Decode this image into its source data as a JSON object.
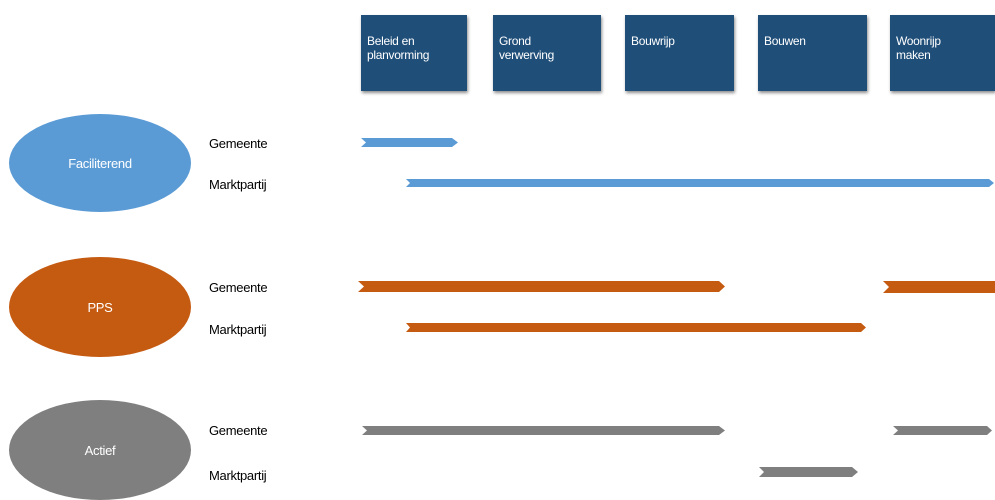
{
  "phases": [
    {
      "label": "Beleid en\nplanvorming"
    },
    {
      "label": "Grond\nverwerving"
    },
    {
      "label": "Bouwrijp"
    },
    {
      "label": "Bouwen"
    },
    {
      "label": "Woonrijp\nmaken"
    }
  ],
  "models": [
    {
      "label": "Faciliterend",
      "color": "#5b9bd5",
      "roles": [
        {
          "label": "Gemeente",
          "segments": [
            {
              "from": "Beleid en planvorming",
              "to": "Beleid en planvorming"
            }
          ]
        },
        {
          "label": "Marktpartij",
          "segments": [
            {
              "from": "Beleid en planvorming",
              "to": "Woonrijp maken"
            }
          ]
        }
      ]
    },
    {
      "label": "PPS",
      "color": "#c55a11",
      "roles": [
        {
          "label": "Gemeente",
          "segments": [
            {
              "from": "Beleid en planvorming",
              "to": "Bouwrijp"
            },
            {
              "from": "Woonrijp maken",
              "to": "Woonrijp maken"
            }
          ]
        },
        {
          "label": "Marktpartij",
          "segments": [
            {
              "from": "Beleid en planvorming",
              "to": "Bouwen"
            }
          ]
        }
      ]
    },
    {
      "label": "Actief",
      "color": "#7f7f7f",
      "roles": [
        {
          "label": "Gemeente",
          "segments": [
            {
              "from": "Beleid en planvorming",
              "to": "Bouwrijp"
            },
            {
              "from": "Woonrijp maken",
              "to": "Woonrijp maken"
            }
          ]
        },
        {
          "label": "Marktpartij",
          "segments": [
            {
              "from": "Bouwen",
              "to": "Bouwen"
            }
          ]
        }
      ]
    }
  ],
  "colors": {
    "phase_box": "#1f4e79"
  }
}
